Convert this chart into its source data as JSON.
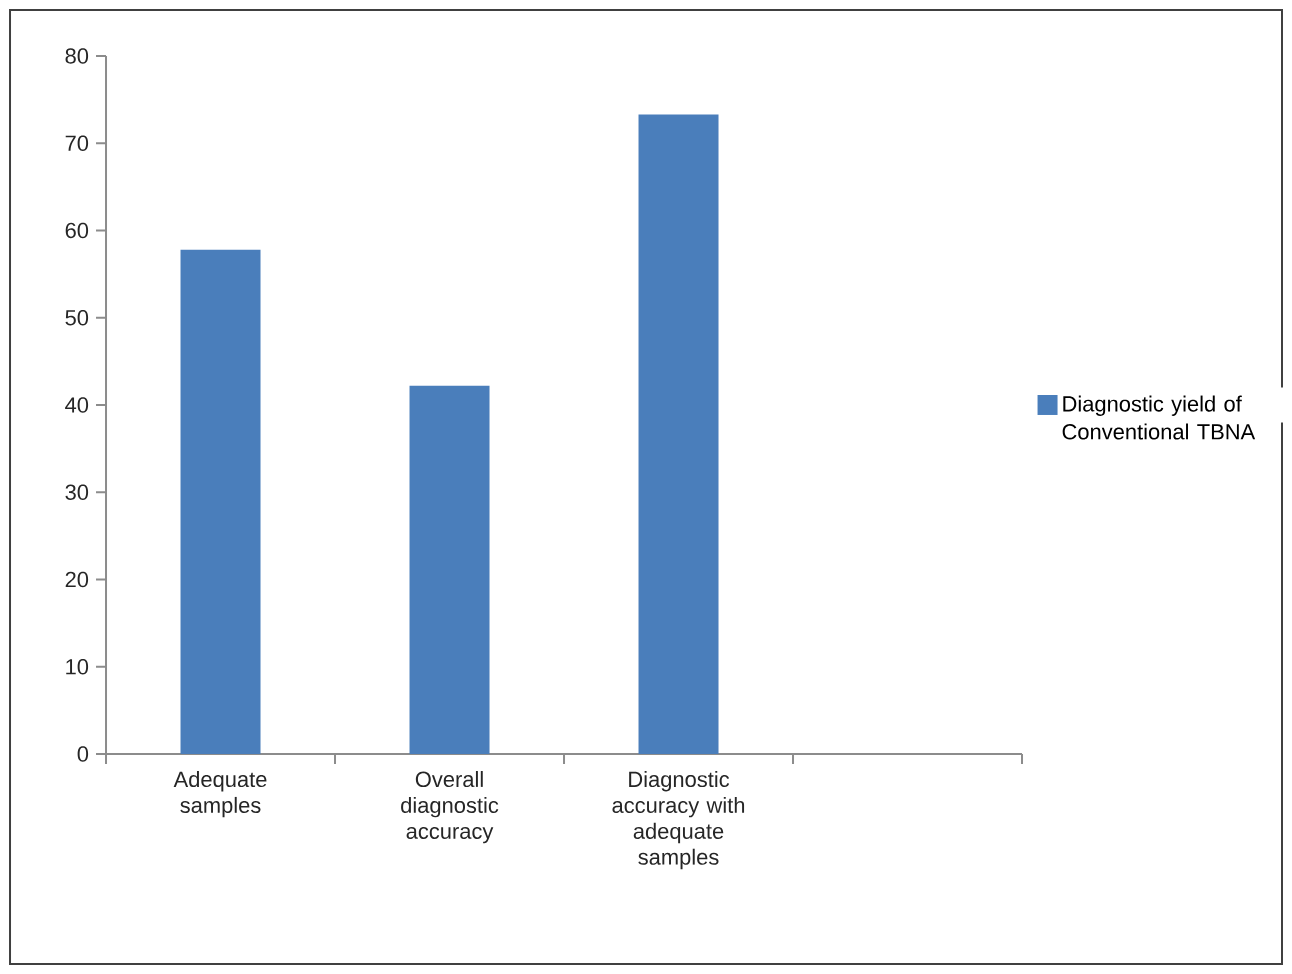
{
  "chart_data": {
    "type": "bar",
    "categories": [
      "Adequate samples",
      "Overall diagnostic accuracy",
      "Diagnostic accuracy with adequate samples",
      null
    ],
    "series": [
      {
        "name": "Diagnostic yield of Conventional TBNA",
        "color": "#4a7ebb",
        "values": [
          57.8,
          42.2,
          73.3,
          null
        ]
      }
    ],
    "ylim": [
      0,
      80
    ],
    "yticks": [
      0,
      10,
      20,
      30,
      40,
      50,
      60,
      70,
      80
    ],
    "grid": false,
    "legend": "right"
  }
}
